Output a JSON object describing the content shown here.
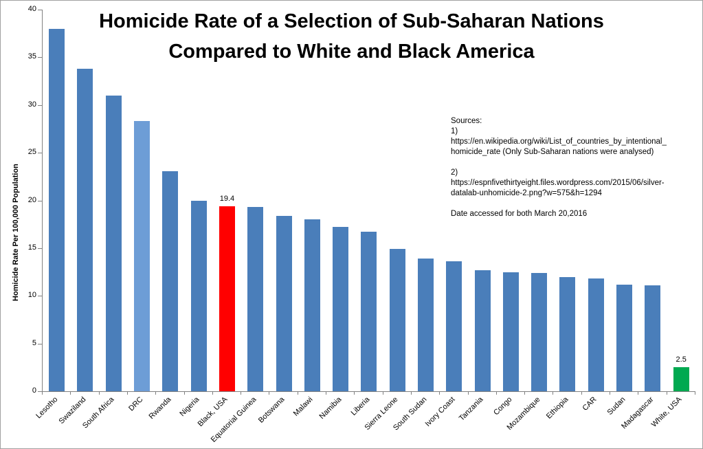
{
  "title": {
    "line1": "Homicide Rate of a Selection of Sub-Saharan Nations",
    "line2": "Compared to White and Black America"
  },
  "y_axis": {
    "label": "Homicide Rate Per 100,000  Population",
    "ticks": [
      0,
      5,
      10,
      15,
      20,
      25,
      30,
      35,
      40
    ],
    "max": 40
  },
  "sources_note": {
    "lines": [
      "Sources:",
      "1)",
      "https://en.wikipedia.org/wiki/List_of_countries_by_intentional_",
      "homicide_rate   (Only Sub-Saharan nations were analysed)",
      "",
      "2)",
      "https://espnfivethirtyeight.files.wordpress.com/2015/06/silver-",
      "datalab-unhomicide-2.png?w=575&h=1294",
      "",
      "Date accessed for both March 20,2016"
    ]
  },
  "chart_data": {
    "type": "bar",
    "title": "Homicide Rate of a Selection of Sub-Saharan Nations Compared to White and Black America",
    "xlabel": "",
    "ylabel": "Homicide Rate Per 100,000  Population",
    "ylim": [
      0,
      40
    ],
    "grid": false,
    "legend": "none",
    "default_color": "#4A7EBA",
    "highlight_colors": {
      "black_usa": "#FF0000",
      "white_usa": "#00A950",
      "drc": "#6D9DD6"
    },
    "bars": [
      {
        "label": "Lesotho",
        "value": 38
      },
      {
        "label": "Swaziland",
        "value": 33.8
      },
      {
        "label": "South Africa",
        "value": 31
      },
      {
        "label": "DRC",
        "value": 28.3,
        "color": "#6D9DD6"
      },
      {
        "label": "Rwanda",
        "value": 23.1
      },
      {
        "label": "Nigeria",
        "value": 20
      },
      {
        "label": "Black, USA",
        "value": 19.4,
        "color": "#FF0000",
        "data_label": "19.4"
      },
      {
        "label": "Equatorial Guinea",
        "value": 19.3
      },
      {
        "label": "Botswana",
        "value": 18.4
      },
      {
        "label": "Malawi",
        "value": 18
      },
      {
        "label": "Namibia",
        "value": 17.2
      },
      {
        "label": "Liberia",
        "value": 16.7
      },
      {
        "label": "Sierra Leone",
        "value": 14.9
      },
      {
        "label": "South Sudan",
        "value": 13.9
      },
      {
        "label": "Ivory Coast",
        "value": 13.6
      },
      {
        "label": "Tanzania",
        "value": 12.7
      },
      {
        "label": "Congo",
        "value": 12.5
      },
      {
        "label": "Mozambique",
        "value": 12.4
      },
      {
        "label": "Ethiopia",
        "value": 12
      },
      {
        "label": "CAR",
        "value": 11.8
      },
      {
        "label": "Sudan",
        "value": 11.2
      },
      {
        "label": "Madagascar",
        "value": 11.1
      },
      {
        "label": "White, USA",
        "value": 2.5,
        "color": "#00A950",
        "data_label": "2.5"
      }
    ]
  }
}
